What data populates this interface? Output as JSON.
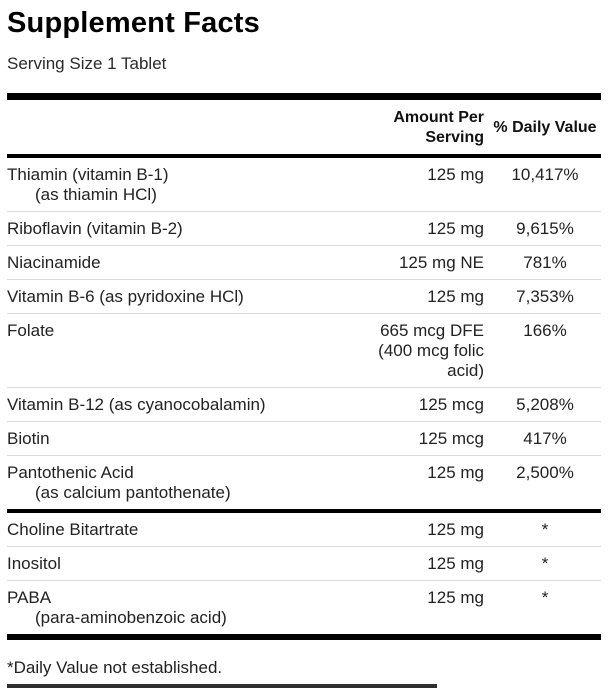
{
  "title": "Supplement Facts",
  "serving_size": "Serving Size 1 Tablet",
  "table": {
    "headers": {
      "amount": "Amount Per\nServing",
      "daily_value": "% Daily Value"
    },
    "rows": [
      {
        "name": "Thiamin (vitamin B-1)",
        "sub": "(as thiamin HCl)",
        "amount": "125 mg",
        "dv": "10,417%"
      },
      {
        "name": "Riboflavin (vitamin B-2)",
        "amount": "125 mg",
        "dv": "9,615%"
      },
      {
        "name": "Niacinamide",
        "amount": "125 mg NE",
        "dv": "781%"
      },
      {
        "name": "Vitamin B-6 (as pyridoxine HCl)",
        "amount": "125 mg",
        "dv": "7,353%"
      },
      {
        "name": "Folate",
        "amount": "665 mcg DFE\n(400 mcg folic\nacid)",
        "dv": "166%"
      },
      {
        "name": "Vitamin B-12 (as cyanocobalamin)",
        "amount": "125 mcg",
        "dv": "5,208%"
      },
      {
        "name": "Biotin",
        "amount": "125 mcg",
        "dv": "417%"
      },
      {
        "name": "Pantothenic Acid",
        "sub": "(as calcium pantothenate)",
        "amount": "125 mg",
        "dv": "2,500%"
      },
      {
        "name": "Choline Bitartrate",
        "amount": "125 mg",
        "dv": "*"
      },
      {
        "name": "Inositol",
        "amount": "125 mg",
        "dv": "*"
      },
      {
        "name": "PABA",
        "sub": "(para-aminobenzoic acid)",
        "amount": "125 mg",
        "dv": "*"
      }
    ]
  },
  "footnote": "*Daily Value not established.",
  "colors": {
    "text": "#1f1f1f",
    "bar": "#000000",
    "separator": "#d9d9d9"
  }
}
